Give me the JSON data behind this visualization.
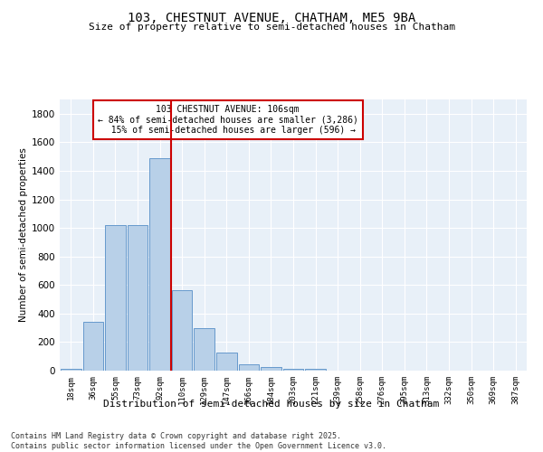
{
  "title": "103, CHESTNUT AVENUE, CHATHAM, ME5 9BA",
  "subtitle": "Size of property relative to semi-detached houses in Chatham",
  "xlabel": "Distribution of semi-detached houses by size in Chatham",
  "ylabel": "Number of semi-detached properties",
  "bin_labels": [
    "18sqm",
    "36sqm",
    "55sqm",
    "73sqm",
    "92sqm",
    "110sqm",
    "129sqm",
    "147sqm",
    "166sqm",
    "184sqm",
    "203sqm",
    "221sqm",
    "239sqm",
    "258sqm",
    "276sqm",
    "295sqm",
    "313sqm",
    "332sqm",
    "350sqm",
    "369sqm",
    "387sqm"
  ],
  "bin_values": [
    15,
    340,
    1020,
    1020,
    1490,
    565,
    300,
    125,
    45,
    25,
    15,
    15,
    0,
    0,
    0,
    0,
    0,
    0,
    0,
    0,
    0
  ],
  "bar_color": "#b8d0e8",
  "bar_edge_color": "#6699cc",
  "vline_color": "#cc0000",
  "annotation_title": "103 CHESTNUT AVENUE: 106sqm",
  "annotation_line1": "← 84% of semi-detached houses are smaller (3,286)",
  "annotation_line2": "  15% of semi-detached houses are larger (596) →",
  "annotation_box_color": "#cc0000",
  "ylim": [
    0,
    1900
  ],
  "yticks": [
    0,
    200,
    400,
    600,
    800,
    1000,
    1200,
    1400,
    1600,
    1800
  ],
  "bg_color": "#e8f0f8",
  "footer_line1": "Contains HM Land Registry data © Crown copyright and database right 2025.",
  "footer_line2": "Contains public sector information licensed under the Open Government Licence v3.0."
}
